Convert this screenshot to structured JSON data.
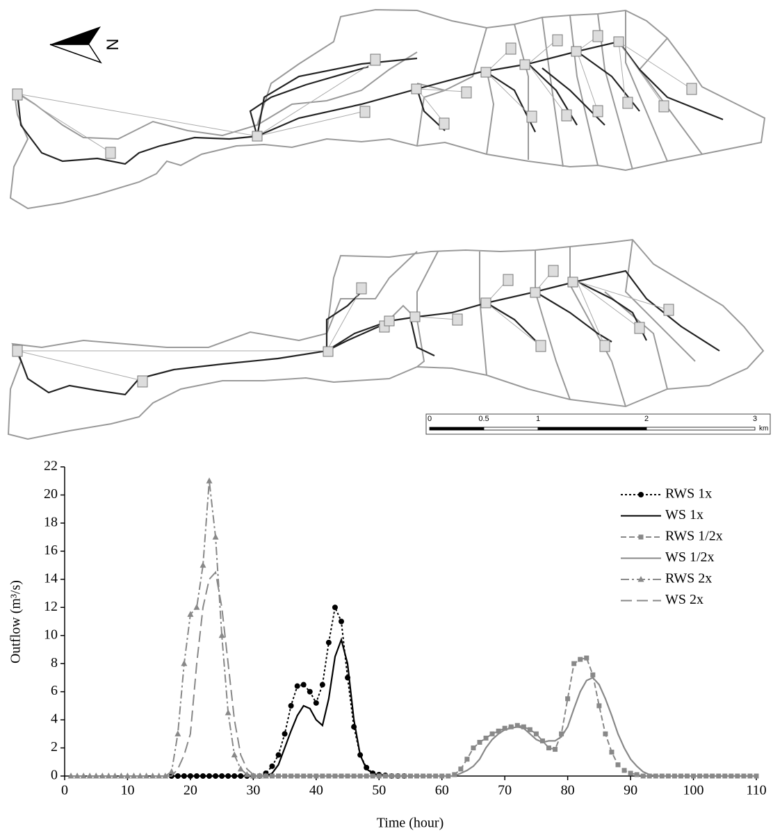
{
  "map": {
    "north_label": "N",
    "scale_bar": {
      "ticks": [
        0,
        0.5,
        1,
        2,
        3
      ],
      "unit": "km"
    }
  },
  "chart_data": {
    "type": "line",
    "x_label": "Time (hour)",
    "y_label": "Outflow (m³/s)",
    "xlim": [
      0,
      110
    ],
    "xticks": [
      0,
      10,
      20,
      30,
      40,
      50,
      60,
      70,
      80,
      90,
      100,
      110
    ],
    "ylim": [
      0,
      22
    ],
    "yticks": [
      0,
      2,
      4,
      6,
      8,
      10,
      12,
      14,
      16,
      18,
      20,
      22
    ],
    "legend": "upper right",
    "x": [
      1,
      2,
      3,
      4,
      5,
      6,
      7,
      8,
      9,
      10,
      11,
      12,
      13,
      14,
      15,
      16,
      17,
      18,
      19,
      20,
      21,
      22,
      23,
      24,
      25,
      26,
      27,
      28,
      29,
      30,
      31,
      32,
      33,
      34,
      35,
      36,
      37,
      38,
      39,
      40,
      41,
      42,
      43,
      44,
      45,
      46,
      47,
      48,
      49,
      50,
      51,
      52,
      53,
      54,
      55,
      56,
      57,
      58,
      59,
      60,
      61,
      62,
      63,
      64,
      65,
      66,
      67,
      68,
      69,
      70,
      71,
      72,
      73,
      74,
      75,
      76,
      77,
      78,
      79,
      80,
      81,
      82,
      83,
      84,
      85,
      86,
      87,
      88,
      89,
      90,
      91,
      92,
      93,
      94,
      95,
      96,
      97,
      98,
      99,
      100,
      101,
      102,
      103,
      104,
      105,
      106,
      107,
      108,
      109,
      110
    ],
    "series": [
      {
        "name": "RWS 1x",
        "color": "#000000",
        "line_style": "dotted",
        "marker": "circle",
        "values": [
          null,
          null,
          null,
          null,
          null,
          null,
          null,
          null,
          null,
          null,
          null,
          null,
          null,
          null,
          null,
          null,
          0,
          0,
          0,
          0,
          0,
          0,
          0,
          0,
          0,
          0,
          0,
          0,
          0,
          0,
          0,
          0.2,
          0.7,
          1.5,
          3,
          5,
          6.4,
          6.5,
          6,
          5.2,
          6.5,
          9.5,
          12,
          11,
          7,
          3.5,
          1.5,
          0.6,
          0.2,
          0.1,
          0.05,
          0,
          0,
          0,
          null,
          null,
          null,
          null,
          null,
          null,
          null,
          null,
          null,
          null,
          null,
          null,
          null,
          null,
          null,
          null,
          null,
          null,
          null,
          null,
          null,
          null,
          null,
          null,
          null,
          null,
          null,
          null,
          null,
          null,
          null,
          null,
          null,
          null,
          null,
          null,
          null,
          null,
          null,
          null,
          null,
          null,
          null,
          null,
          null,
          null,
          null,
          null,
          null,
          null,
          null,
          null,
          null,
          null,
          null,
          null
        ]
      },
      {
        "name": "WS 1x",
        "color": "#000000",
        "line_style": "solid",
        "marker": "none",
        "values": [
          null,
          null,
          null,
          null,
          null,
          null,
          null,
          null,
          null,
          null,
          null,
          null,
          null,
          null,
          null,
          null,
          0,
          0,
          0,
          0,
          0,
          0,
          0,
          0,
          0,
          0,
          0,
          0,
          0,
          0,
          0,
          0,
          0.2,
          0.8,
          2,
          3.2,
          4.3,
          5,
          4.8,
          4,
          3.6,
          5.5,
          8.5,
          9.7,
          8,
          4,
          1.5,
          0.5,
          0.2,
          0.05,
          0,
          0,
          0,
          null,
          null,
          null,
          null,
          null,
          null,
          null,
          null,
          null,
          null,
          null,
          null,
          null,
          null,
          null,
          null,
          null,
          null,
          null,
          null,
          null,
          null,
          null,
          null,
          null,
          null,
          null,
          null,
          null,
          null,
          null,
          null,
          null,
          null,
          null,
          null,
          null,
          null,
          null,
          null,
          null,
          null,
          null,
          null,
          null,
          null,
          null,
          null,
          null,
          null,
          null,
          null,
          null,
          null,
          null,
          null,
          null
        ]
      },
      {
        "name": "RWS 1/2x",
        "color": "#888888",
        "line_style": "dashed",
        "marker": "square",
        "values": [
          null,
          null,
          null,
          null,
          null,
          null,
          null,
          null,
          null,
          null,
          null,
          null,
          null,
          null,
          null,
          null,
          null,
          null,
          null,
          null,
          null,
          null,
          null,
          null,
          null,
          null,
          null,
          null,
          null,
          0,
          0,
          0,
          0,
          0,
          0,
          0,
          0,
          0,
          0,
          0,
          0,
          0,
          0,
          0,
          0,
          0,
          0,
          0,
          0,
          0,
          0,
          0,
          0,
          0,
          0,
          0,
          0,
          0,
          0,
          0,
          0,
          0.1,
          0.5,
          1.2,
          2,
          2.4,
          2.7,
          3,
          3.2,
          3.4,
          3.5,
          3.6,
          3.5,
          3.3,
          3,
          2.5,
          2,
          1.9,
          3,
          5.5,
          8,
          8.3,
          8.4,
          7.2,
          5,
          3,
          1.7,
          0.8,
          0.4,
          0.2,
          0.1,
          0,
          0,
          0,
          0,
          0,
          0,
          0,
          0,
          0,
          0,
          0,
          0,
          0,
          0,
          0,
          0,
          0,
          0,
          0
        ]
      },
      {
        "name": "WS 1/2x",
        "color": "#888888",
        "line_style": "solid",
        "marker": "none",
        "values": [
          null,
          null,
          null,
          null,
          null,
          null,
          null,
          null,
          null,
          null,
          null,
          null,
          null,
          null,
          null,
          null,
          null,
          null,
          null,
          null,
          null,
          null,
          null,
          null,
          null,
          null,
          null,
          null,
          null,
          0,
          0,
          0,
          0,
          0,
          0,
          0,
          0,
          0,
          0,
          0,
          0,
          0,
          0,
          0,
          0,
          0,
          0,
          0,
          0,
          0,
          0,
          0,
          0,
          0,
          0,
          0,
          0,
          0,
          0,
          0,
          0,
          0,
          0.2,
          0.4,
          0.7,
          1.2,
          2,
          2.6,
          3,
          3.3,
          3.4,
          3.5,
          3.4,
          3,
          2.6,
          2.4,
          2.5,
          2.5,
          2.8,
          3.5,
          4.8,
          6,
          6.8,
          7,
          6.5,
          5.5,
          4.3,
          3,
          2,
          1.2,
          0.7,
          0.3,
          0.1,
          0,
          0,
          0,
          0,
          0,
          0,
          0,
          0,
          0,
          0,
          0,
          0,
          0,
          0,
          0,
          0,
          0
        ]
      },
      {
        "name": "RWS 2x",
        "color": "#888888",
        "line_style": "dashdot",
        "marker": "triangle",
        "values": [
          0,
          0,
          0,
          0,
          0,
          0,
          0,
          0,
          0,
          0,
          0,
          0,
          0,
          0,
          0,
          0,
          0.3,
          3,
          8,
          11.5,
          12,
          15,
          21,
          17,
          10,
          4.5,
          1.5,
          0.5,
          0.1,
          0,
          0,
          0,
          null,
          null,
          null,
          null,
          null,
          null,
          null,
          null,
          null,
          null,
          null,
          null,
          null,
          null,
          null,
          null,
          null,
          null,
          null,
          null,
          null,
          null,
          null,
          null,
          null,
          null,
          null,
          null,
          null,
          null,
          null,
          null,
          null,
          null,
          null,
          null,
          null,
          null,
          null,
          null,
          null,
          null,
          null,
          null,
          null,
          null,
          null,
          null,
          null,
          null,
          null,
          null,
          null,
          null,
          null,
          null,
          null,
          null,
          null,
          null,
          null,
          null,
          null,
          null,
          null,
          null,
          null,
          null,
          null,
          null,
          null,
          null,
          null,
          null,
          null,
          null,
          null,
          null
        ]
      },
      {
        "name": "WS 2x",
        "color": "#888888",
        "line_style": "longdash",
        "marker": "none",
        "values": [
          0,
          0,
          0,
          0,
          0,
          0,
          0,
          0,
          0,
          0,
          0,
          0,
          0,
          0,
          0,
          0,
          0,
          0.5,
          1.5,
          3,
          8,
          12,
          14,
          14.5,
          12,
          8,
          4,
          1.5,
          0.5,
          0.1,
          0,
          0,
          null,
          null,
          null,
          null,
          null,
          null,
          null,
          null,
          null,
          null,
          null,
          null,
          null,
          null,
          null,
          null,
          null,
          null,
          null,
          null,
          null,
          null,
          null,
          null,
          null,
          null,
          null,
          null,
          null,
          null,
          null,
          null,
          null,
          null,
          null,
          null,
          null,
          null,
          null,
          null,
          null,
          null,
          null,
          null,
          null,
          null,
          null,
          null,
          null,
          null,
          null,
          null,
          null,
          null,
          null,
          null,
          null,
          null,
          null,
          null,
          null,
          null,
          null,
          null,
          null,
          null,
          null,
          null,
          null,
          null,
          null,
          null,
          null,
          null,
          null,
          null,
          null,
          null
        ]
      }
    ]
  }
}
